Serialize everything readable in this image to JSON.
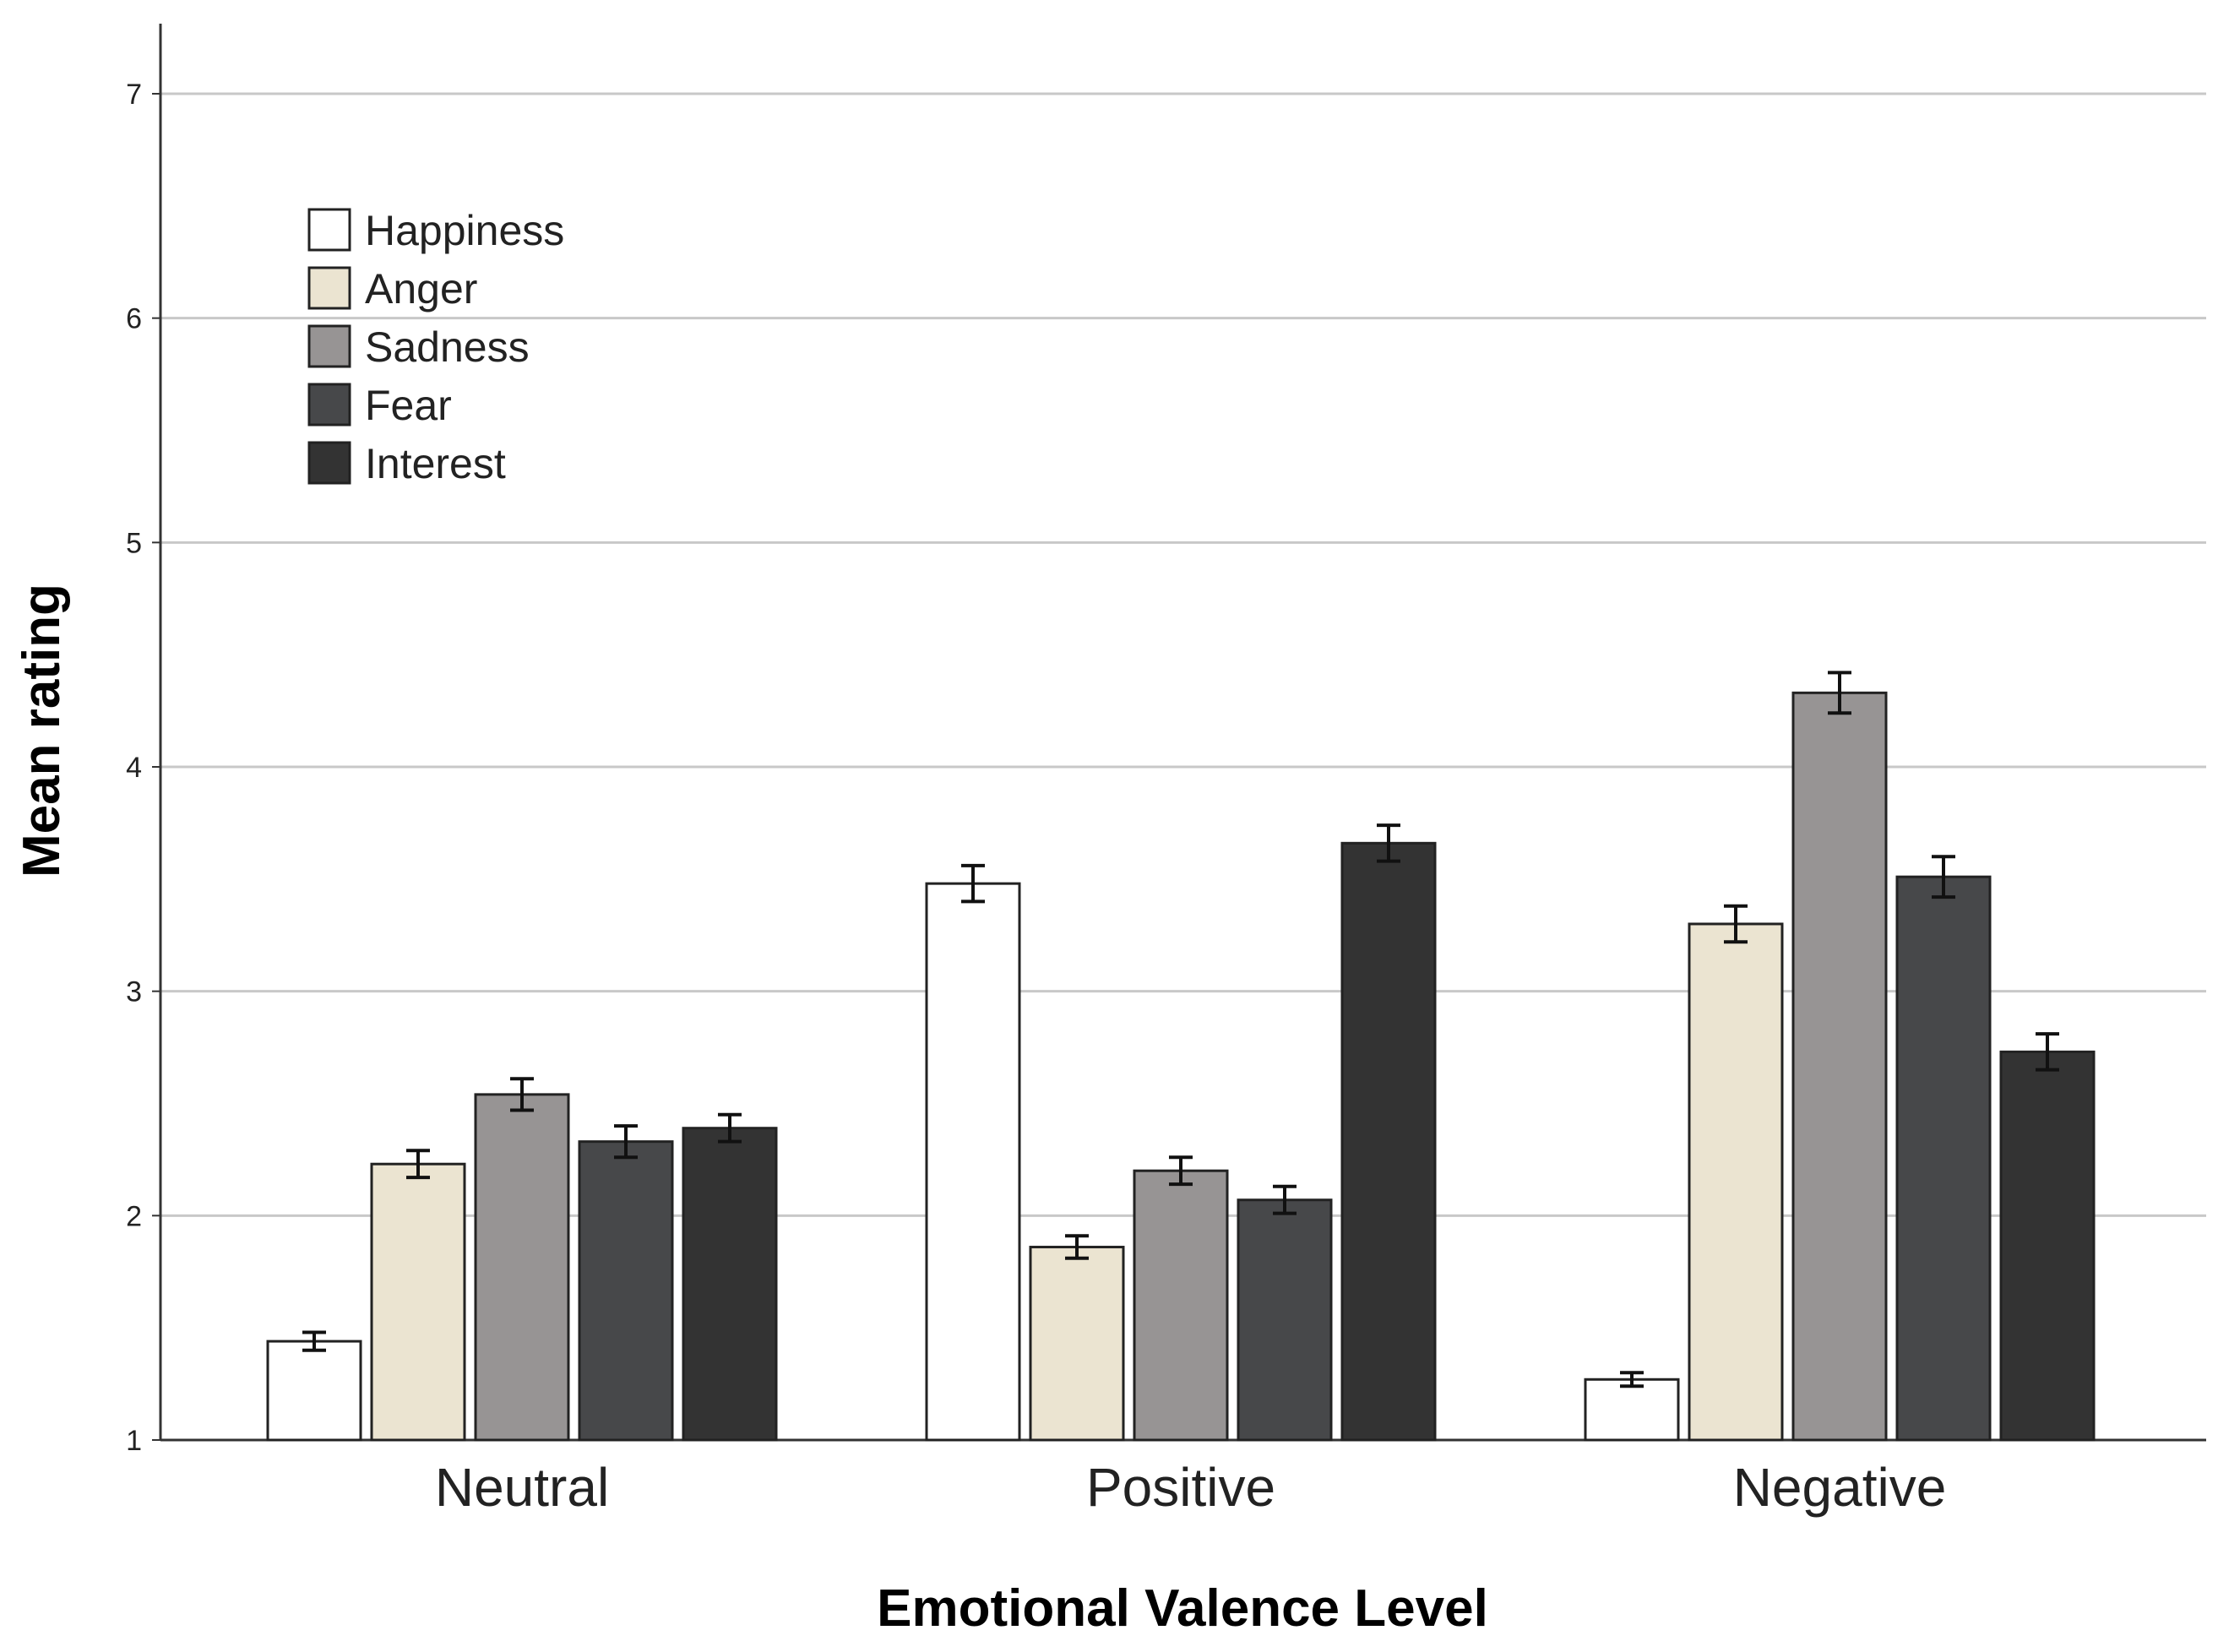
{
  "chart_data": {
    "type": "bar",
    "title": "",
    "xlabel": "Emotional Valence Level",
    "ylabel": "Mean rating",
    "ylim": [
      1,
      7
    ],
    "yticks": [
      1,
      2,
      3,
      4,
      5,
      6,
      7
    ],
    "grid": true,
    "legend_position": "top-left",
    "categories": [
      "Neutral",
      "Positive",
      "Negative"
    ],
    "series": [
      {
        "name": "Happiness",
        "color": "#ffffff",
        "values": [
          1.44,
          3.48,
          1.27
        ],
        "errors": [
          0.04,
          0.08,
          0.03
        ]
      },
      {
        "name": "Anger",
        "color": "#ebe4d1",
        "values": [
          2.23,
          1.86,
          3.3
        ],
        "errors": [
          0.06,
          0.05,
          0.08
        ]
      },
      {
        "name": "Sadness",
        "color": "#979494",
        "values": [
          2.54,
          2.2,
          4.33
        ],
        "errors": [
          0.07,
          0.06,
          0.09
        ]
      },
      {
        "name": "Fear",
        "color": "#47484a",
        "values": [
          2.33,
          2.07,
          3.51
        ],
        "errors": [
          0.07,
          0.06,
          0.09
        ]
      },
      {
        "name": "Interest",
        "color": "#333333",
        "values": [
          2.39,
          3.66,
          2.73
        ],
        "errors": [
          0.06,
          0.08,
          0.08
        ]
      }
    ]
  }
}
